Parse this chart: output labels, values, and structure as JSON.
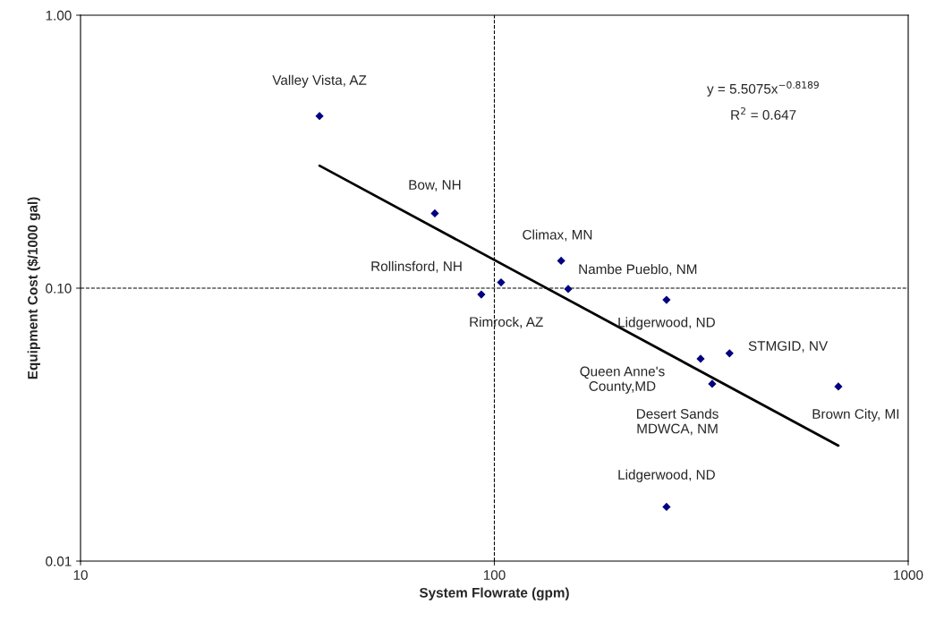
{
  "chart_data": {
    "type": "scatter",
    "xlabel": "System Flowrate (gpm)",
    "ylabel": "Equipment Cost ($/1000 gal)",
    "log": "xy",
    "xlim": [
      10,
      1000
    ],
    "xticks": [
      10,
      100,
      1000
    ],
    "ylim": [
      0.01,
      1.0
    ],
    "yticks": [
      {
        "value": 0.01,
        "label": "0.01"
      },
      {
        "value": 0.1,
        "label": "0.10"
      },
      {
        "value": 1.0,
        "label": "1.00"
      }
    ],
    "grid": false,
    "series": [
      {
        "color": "#000080",
        "marker": "diamond",
        "x": [
          37.8,
          71.8,
          145,
          103.8,
          93,
          150.8,
          260.6,
          315,
          370,
          336,
          678,
          260.6
        ],
        "values": [
          0.427,
          0.188,
          0.126,
          0.105,
          0.0948,
          0.0993,
          0.0906,
          0.0551,
          0.0577,
          0.0446,
          0.0436,
          0.0158
        ]
      },
      {
        "type": "line",
        "color": "#000000",
        "x": [
          37.8,
          678
        ],
        "values": [
          0.281,
          0.0265
        ]
      }
    ],
    "ref_lines": [
      {
        "axis": "x",
        "value": 100,
        "color": "#000000",
        "line_style": "dashed"
      },
      {
        "axis": "y",
        "value": 0.1,
        "color": "#000000",
        "line_style": "dashed"
      }
    ],
    "annotations": [
      {
        "text": "Valley Vista, AZ",
        "x": 37.8,
        "y": 0.427
      },
      {
        "text": "Bow, NH",
        "x": 71.8,
        "y": 0.188
      },
      {
        "text": "Climax, MN",
        "x": 145,
        "y": 0.126
      },
      {
        "text": "Rollinsford, NH",
        "x": 103.8,
        "y": 0.105
      },
      {
        "text": "Rimrock, AZ",
        "x": 93,
        "y": 0.0948
      },
      {
        "text": "Nambe Pueblo, NM",
        "x": 150.8,
        "y": 0.0993
      },
      {
        "text": "Lidgerwood, ND",
        "x": 260.6,
        "y": 0.0906
      },
      {
        "text": "Queen Anne's\nCounty,MD",
        "x": 315,
        "y": 0.0551
      },
      {
        "text": "STMGID, NV",
        "x": 370,
        "y": 0.0577
      },
      {
        "text": "Desert Sands\nMDWCA, NM",
        "x": 336,
        "y": 0.0446
      },
      {
        "text": "Brown City, MI",
        "x": 678,
        "y": 0.0436
      },
      {
        "text": "Lidgerwood, ND",
        "x": 260.6,
        "y": 0.0158
      },
      "y = 5.5075x$^{−0.8189}$",
      "R$^{2}$ = 0.647"
    ]
  }
}
